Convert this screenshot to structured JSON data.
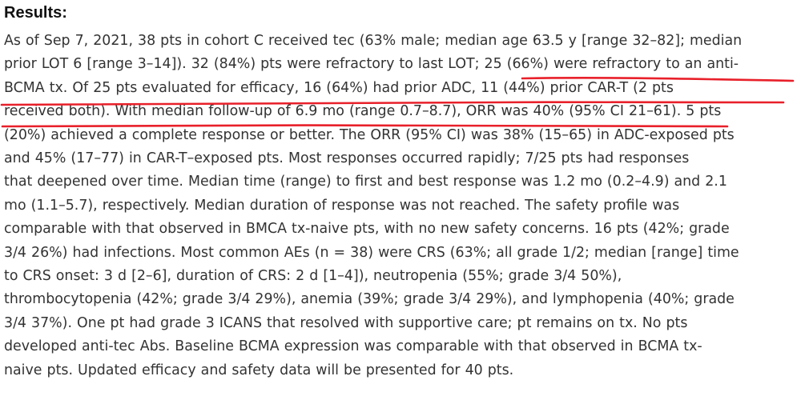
{
  "heading": "Results:",
  "lines": [
    "As of Sep 7, 2021, 38 pts in cohort C received tec (63% male; median age 63.5 y [range 32–82]; median",
    "prior LOT 6 [range 3–14]). 32 (84%) pts were refractory to last LOT; 25 (66%) were refractory to an anti-",
    "BCMA tx. Of 25 pts evaluated for efficacy, 16 (64%) had prior ADC, 11 (44%) prior CAR-T (2 pts",
    "received both). With median follow-up of 6.9 mo (range 0.7–8.7), ORR was 40% (95% CI 21–61). 5 pts",
    "(20%) achieved a complete response or better. The ORR (95% CI) was 38% (15–65) in ADC-exposed pts",
    "and 45% (17–77) in CAR-T–exposed pts. Most responses occurred rapidly; 7/25 pts had responses",
    "that deepened over time. Median time (range) to first and best response was 1.2 mo (0.2–4.9) and 2.1",
    "mo (1.1–5.7), respectively. Median duration of response was not reached. The safety profile was",
    "comparable with that observed in BMCA tx-naive pts, with no new safety concerns. 16 pts (42%; grade",
    "3/4 26%) had infections. Most common AEs (n = 38) were CRS (63%; all grade 1/2; median [range] time",
    "to CRS onset: 3 d [2–6], duration of CRS: 2 d [1–4]), neutropenia (55%; grade 3/4 50%),",
    "thrombocytopenia (42%; grade 3/4 29%), anemia (39%; grade 3/4 29%), and lymphopenia (40%; grade",
    "3/4 37%). One pt had grade 3 ICANS that resolved with supportive care; pt remains on tx. No pts",
    "developed anti-tec Abs. Baseline BCMA expression was comparable with that observed in BCMA tx-",
    "naive pts. Updated efficacy and safety data will be presented for 40 pts."
  ],
  "colors": {
    "text": "#333333",
    "heading": "#111111",
    "underline": "#e8202a"
  }
}
